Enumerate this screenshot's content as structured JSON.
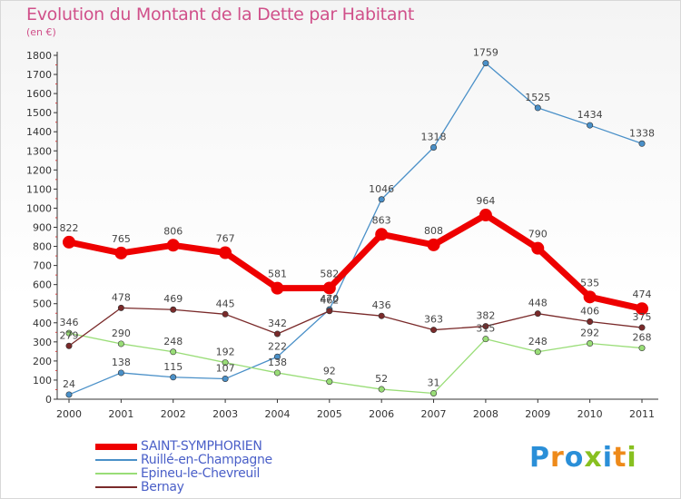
{
  "chart_data": {
    "type": "line",
    "title": "Evolution du Montant de la Dette par Habitant",
    "subtitle": "(en €)",
    "xlabel": "",
    "ylabel": "",
    "x": [
      "2000",
      "2001",
      "2002",
      "2003",
      "2004",
      "2005",
      "2006",
      "2007",
      "2008",
      "2009",
      "2010",
      "2011"
    ],
    "ylim": [
      0,
      1800
    ],
    "yticks": [
      "0",
      "100",
      "200",
      "300",
      "400",
      "500",
      "600",
      "700",
      "800",
      "900",
      "1000",
      "1100",
      "1200",
      "1300",
      "1400",
      "1500",
      "1600",
      "1700",
      "1800"
    ],
    "grid": false,
    "legend_position": "bottom-left",
    "series": [
      {
        "name": "SAINT-SYMPHORIEN",
        "color": "#ee0000",
        "values": [
          822,
          765,
          806,
          767,
          581,
          582,
          863,
          808,
          964,
          790,
          535,
          474
        ],
        "labels": [
          "822",
          "765",
          "806",
          "767",
          "581",
          "582",
          "863",
          "808",
          "964",
          "790",
          "535",
          "474"
        ]
      },
      {
        "name": "Ruillé-en-Champagne",
        "color": "#4a90c8",
        "values": [
          24,
          138,
          115,
          107,
          222,
          470,
          1046,
          1318,
          1759,
          1525,
          1434,
          1338
        ],
        "labels": [
          "24",
          "138",
          "115",
          "107",
          "222",
          "470",
          "1046",
          "1318",
          "1759",
          "1525",
          "1434",
          "1338"
        ]
      },
      {
        "name": "Epineu-le-Chevreuil",
        "color": "#99dd77",
        "values": [
          346,
          290,
          248,
          192,
          138,
          92,
          52,
          31,
          315,
          248,
          292,
          268
        ],
        "labels": [
          "346",
          "290",
          "248",
          "192",
          "138",
          "92",
          "52",
          "31",
          "315",
          "248",
          "292",
          "268"
        ]
      },
      {
        "name": "Bernay",
        "color": "#7a2a2a",
        "values": [
          279,
          478,
          469,
          445,
          342,
          462,
          436,
          363,
          382,
          448,
          406,
          375
        ],
        "labels": [
          "279",
          "478",
          "469",
          "445",
          "342",
          "462",
          "436",
          "363",
          "382",
          "448",
          "406",
          "375"
        ]
      }
    ]
  },
  "brand": {
    "text": "Proxiti",
    "letters": [
      "P",
      "r",
      "o",
      "x",
      "i",
      "t",
      "i"
    ],
    "colors": [
      "#2a8fd8",
      "#ee8a1a",
      "#2a8fd8",
      "#88c020",
      "#2a8fd8",
      "#ee8a1a",
      "#88c020"
    ]
  }
}
